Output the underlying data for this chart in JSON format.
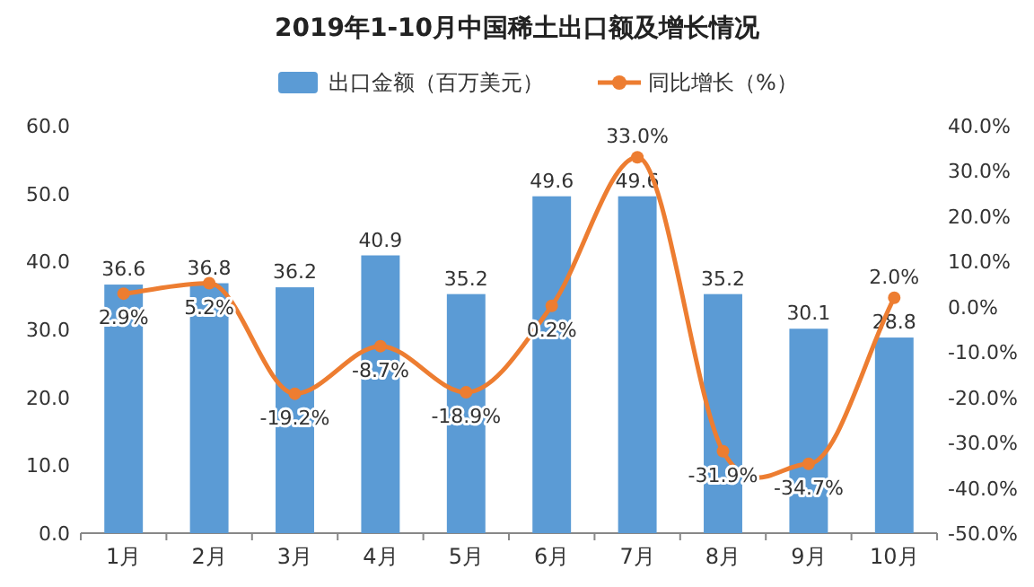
{
  "chart_data": {
    "type": "bar",
    "title": "2019年1-10月中国稀土出口额及增长情况",
    "categories": [
      "1月",
      "2月",
      "3月",
      "4月",
      "5月",
      "6月",
      "7月",
      "8月",
      "9月",
      "10月"
    ],
    "series": [
      {
        "name": "出口金额（百万美元）",
        "color": "#5b9bd5",
        "values": [
          36.6,
          36.8,
          36.2,
          40.9,
          35.2,
          49.6,
          49.6,
          35.2,
          30.1,
          28.8
        ],
        "value_labels": [
          "36.6",
          "36.8",
          "36.2",
          "40.9",
          "35.2",
          "49.6",
          "49.6",
          "35.2",
          "30.1",
          "28.8"
        ]
      },
      {
        "name": "同比增长（%）",
        "type": "line",
        "axis": "y2",
        "color": "#ed7d31",
        "values": [
          2.9,
          5.2,
          -19.2,
          -8.7,
          -18.9,
          0.2,
          33.0,
          -31.9,
          -34.7,
          2.0
        ],
        "value_labels": [
          "2.9%",
          "5.2%",
          "-19.2%",
          "-8.7%",
          "-18.9%",
          "0.2%",
          "33.0%",
          "-31.9%",
          "-34.7%",
          "2.0%"
        ]
      }
    ],
    "ylim": [
      0,
      60
    ],
    "yticks": [
      {
        "value": 0,
        "label": "0.0"
      },
      {
        "value": 10,
        "label": "10.0"
      },
      {
        "value": 20,
        "label": "20.0"
      },
      {
        "value": 30,
        "label": "30.0"
      },
      {
        "value": 40,
        "label": "40.0"
      },
      {
        "value": 50,
        "label": "50.0"
      },
      {
        "value": 60,
        "label": "60.0"
      }
    ],
    "y2lim": [
      -50,
      40
    ],
    "y2ticks": [
      {
        "value": -50,
        "label": "-50.0%"
      },
      {
        "value": -40,
        "label": "-40.0%"
      },
      {
        "value": -30,
        "label": "-30.0%"
      },
      {
        "value": -20,
        "label": "-20.0%"
      },
      {
        "value": -10,
        "label": "-10.0%"
      },
      {
        "value": 0,
        "label": "0.0%"
      },
      {
        "value": 10,
        "label": "10.0%"
      },
      {
        "value": 20,
        "label": "20.0%"
      },
      {
        "value": 30,
        "label": "30.0%"
      },
      {
        "value": 40,
        "label": "40.0%"
      }
    ],
    "marker": "circle",
    "legend": "top"
  }
}
